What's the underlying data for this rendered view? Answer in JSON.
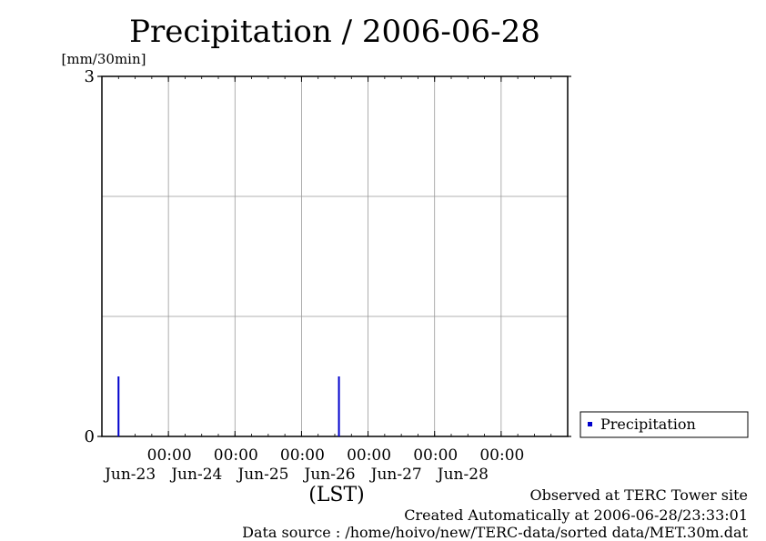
{
  "title": "Precipitation / 2006-06-28",
  "y_unit_label": "[mm/30min]",
  "xlabel": "(LST)",
  "legend_label": "Precipitation",
  "footer": {
    "line1": "Observed at TERC Tower site",
    "line2": "Created Automatically at 2006-06-28/23:33:01",
    "line3": "Data source : /home/hoivo/new/TERC-data/sorted  data/MET.30m.dat"
  },
  "colors": {
    "series": "#0000cc",
    "grid": "#999999",
    "axis": "#000000"
  },
  "chart_data": {
    "type": "bar",
    "title": "Precipitation / 2006-06-28",
    "ylabel": "[mm/30min]",
    "xlabel": "(LST)",
    "ylim": [
      0,
      3
    ],
    "xlim": [
      "2006-06-22T00:00",
      "2006-06-29T00:00"
    ],
    "grid": true,
    "legend_position": "bottom-right, outside plot",
    "y_ticks": [
      {
        "value": 0,
        "label": "0"
      },
      {
        "value": 3,
        "label": "3"
      }
    ],
    "y_grid_values": [
      1,
      2
    ],
    "x_ticks": [
      {
        "time": "2006-06-23T00:00",
        "label_time": "00:00",
        "label_date": "Jun-23"
      },
      {
        "time": "2006-06-24T00:00",
        "label_time": "00:00",
        "label_date": "Jun-24"
      },
      {
        "time": "2006-06-25T00:00",
        "label_time": "00:00",
        "label_date": "Jun-25"
      },
      {
        "time": "2006-06-26T00:00",
        "label_time": "00:00",
        "label_date": "Jun-26"
      },
      {
        "time": "2006-06-27T00:00",
        "label_time": "00:00",
        "label_date": "Jun-27"
      },
      {
        "time": "2006-06-28T00:00",
        "label_time": "00:00",
        "label_date": "Jun-28"
      }
    ],
    "series": [
      {
        "name": "Precipitation",
        "points": [
          {
            "x": "2006-06-22T06:00",
            "y": 0.5
          },
          {
            "x": "2006-06-25T13:30",
            "y": 0.5
          }
        ]
      }
    ]
  }
}
